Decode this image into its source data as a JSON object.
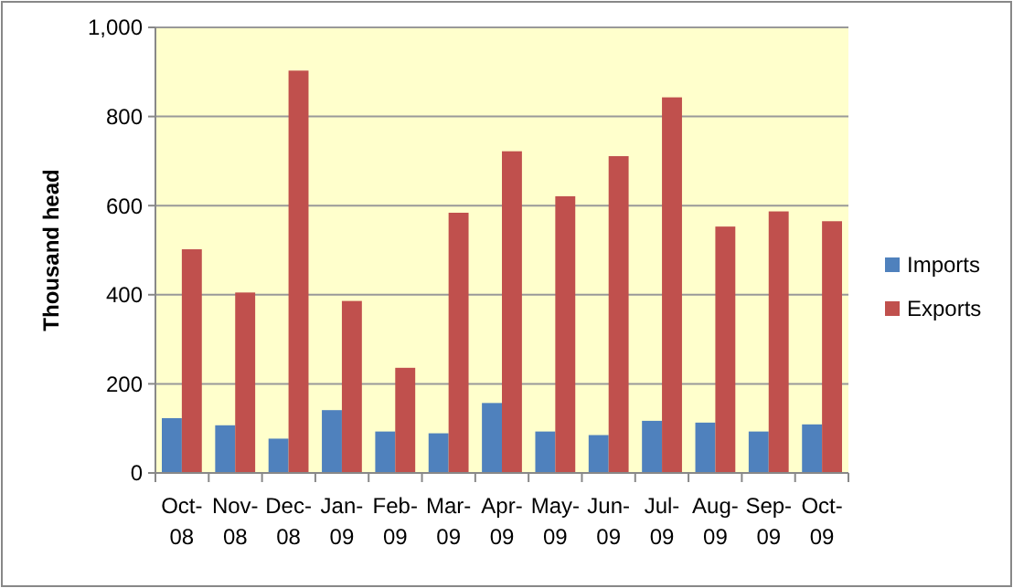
{
  "chart_data": {
    "type": "bar",
    "ylabel": "Thousand head",
    "categories": [
      "Oct-08",
      "Nov-08",
      "Dec-08",
      "Jan-09",
      "Feb-09",
      "Mar-09",
      "Apr-09",
      "May-09",
      "Jun-09",
      "Jul-09",
      "Aug-09",
      "Sep-09",
      "Oct-09"
    ],
    "series": [
      {
        "name": "Imports",
        "color": "#4f81bd",
        "values": [
          123,
          107,
          77,
          141,
          93,
          89,
          157,
          93,
          85,
          117,
          113,
          93,
          109
        ]
      },
      {
        "name": "Exports",
        "color": "#c0504d",
        "values": [
          502,
          405,
          903,
          386,
          236,
          584,
          722,
          621,
          711,
          843,
          553,
          587,
          565
        ]
      }
    ],
    "ylim": [
      0,
      1000
    ],
    "yticks": [
      0,
      200,
      400,
      600,
      800,
      {
        "value": 1000,
        "label": "1,000"
      }
    ],
    "grid": "y",
    "legend": "right"
  }
}
